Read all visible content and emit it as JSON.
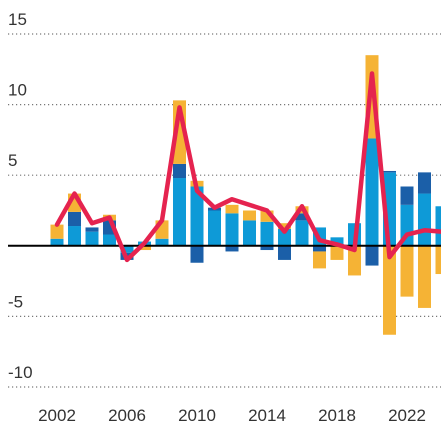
{
  "chart_data": {
    "type": "bar",
    "x": [
      2002,
      2003,
      2004,
      2005,
      2006,
      2007,
      2008,
      2009,
      2010,
      2011,
      2012,
      2013,
      2014,
      2015,
      2016,
      2017,
      2018,
      2019,
      2020,
      2021,
      2022,
      2023,
      2024
    ],
    "series": [
      {
        "type": "bar",
        "color": "#0e9ad7",
        "values": [
          0.5,
          1.4,
          1.0,
          0.8,
          -0.5,
          0.3,
          0.5,
          4.8,
          4.2,
          2.5,
          2.3,
          1.8,
          1.7,
          1.2,
          1.8,
          1.3,
          0.6,
          1.6,
          7.6,
          5.2,
          2.9,
          3.7,
          2.8
        ]
      },
      {
        "type": "bar",
        "color": "#1b5fa8",
        "values": [
          0,
          1.0,
          0.3,
          1.0,
          -0.5,
          0,
          0,
          1.0,
          -1.2,
          0.2,
          -0.4,
          0,
          -0.3,
          -1.0,
          0.5,
          -0.4,
          0,
          0,
          -1.4,
          0.1,
          1.3,
          1.5,
          0
        ]
      },
      {
        "type": "bar",
        "color": "#f5b335",
        "values": [
          1.0,
          1.3,
          0,
          0.4,
          0,
          -0.3,
          1.3,
          4.5,
          0.4,
          0,
          0.6,
          0.7,
          0.8,
          0.4,
          0.5,
          -1.2,
          -1.0,
          -2.1,
          5.9,
          -6.3,
          -3.6,
          -4.4,
          -2.0
        ]
      },
      {
        "type": "line",
        "color": "#e5234f",
        "values": [
          1.5,
          3.7,
          1.6,
          2.0,
          -1.0,
          0.2,
          1.8,
          9.8,
          3.9,
          2.7,
          3.3,
          2.9,
          2.5,
          1.0,
          2.8,
          0.4,
          0.1,
          -0.3,
          12.2,
          -0.8,
          0.8,
          1.1,
          1.0
        ]
      }
    ],
    "xlim": [
      2002,
      2024
    ],
    "xticks": [
      2002,
      2006,
      2010,
      2014,
      2018,
      2022
    ],
    "ylim": [
      -10,
      15
    ],
    "yticks": [
      -10,
      -5,
      5,
      10,
      15
    ],
    "grid": true
  }
}
